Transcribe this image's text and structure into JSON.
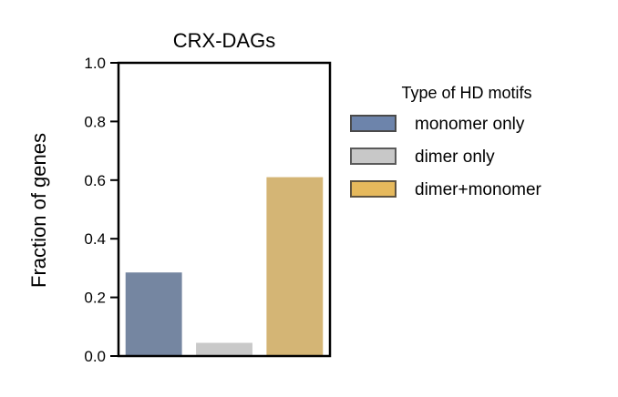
{
  "chart_data": {
    "type": "bar",
    "title": "CRX-DAGs",
    "xlabel": "",
    "ylabel": "Fraction of genes",
    "ylim": [
      0,
      1.0
    ],
    "yticks": [
      "0.0",
      "0.2",
      "0.4",
      "0.6",
      "0.8",
      "1.0"
    ],
    "grid": false,
    "categories": [
      "monomer only",
      "dimer only",
      "dimer+monomer"
    ],
    "values": [
      0.285,
      0.045,
      0.61
    ],
    "colors": [
      "#7586a1",
      "#c9c9c9",
      "#d4b575"
    ],
    "legend": {
      "title": "Type of HD motifs",
      "placement": "right",
      "entries": [
        {
          "label": "monomer only",
          "color": "#6d84ab",
          "edge": "#4a4a4a"
        },
        {
          "label": "dimer only",
          "color": "#c8c8c8",
          "edge": "#5a5a5a"
        },
        {
          "label": "dimer+monomer",
          "color": "#e6b95c",
          "edge": "#5e5340"
        }
      ]
    }
  }
}
